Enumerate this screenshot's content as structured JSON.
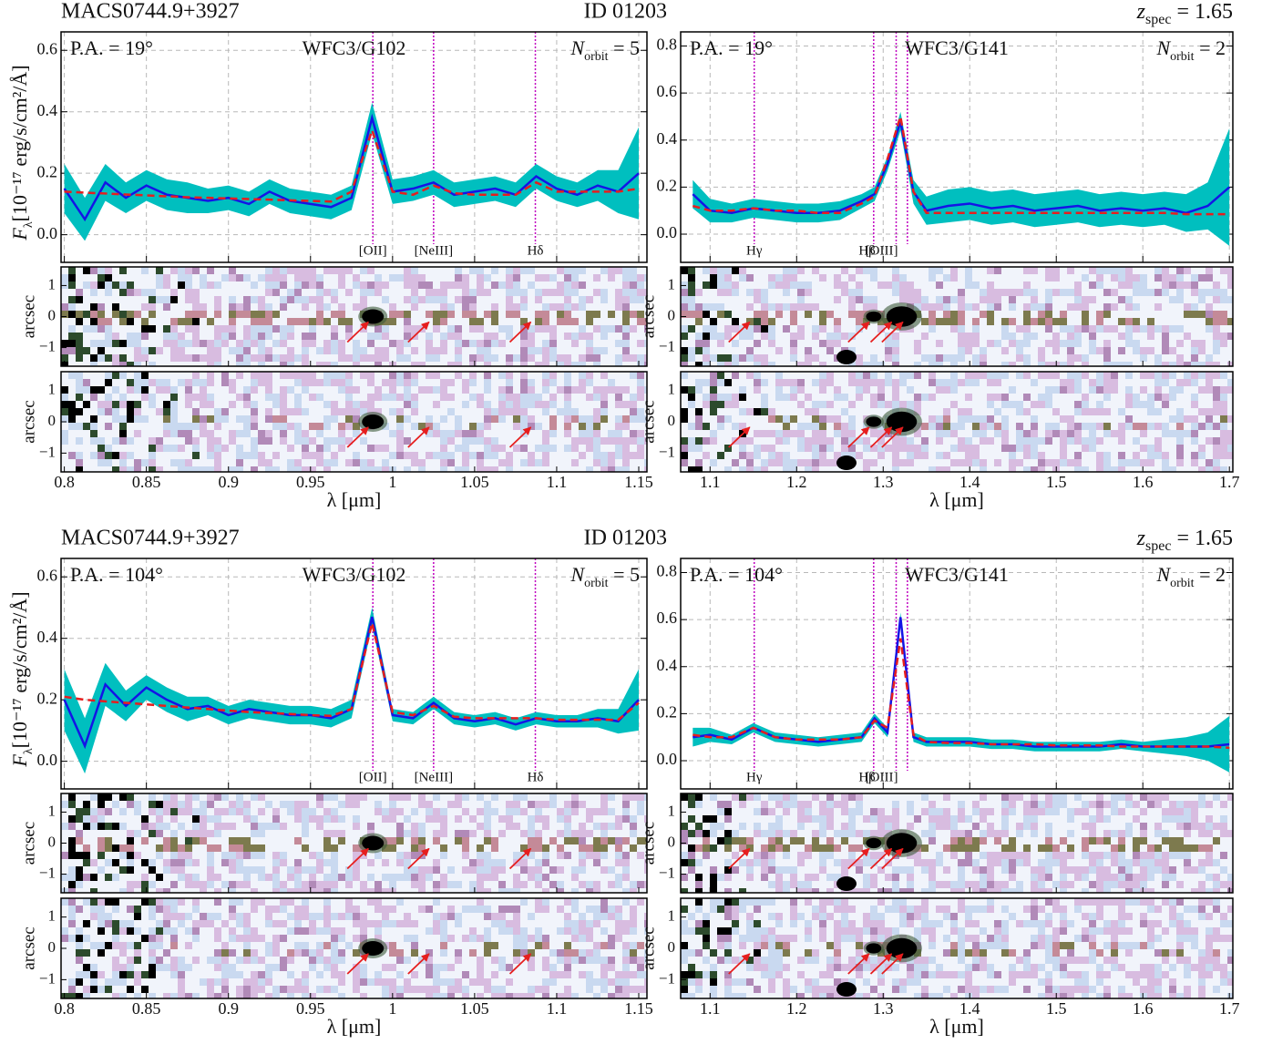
{
  "chart_data": [
    {
      "type": "line",
      "title": "MACS0744.9+3927",
      "id": "ID 01203",
      "position_angle": "P.A. = 19°",
      "grism": "WFC3/G102",
      "orbits": {
        "symbol": "N",
        "sub": "orbit",
        "rest": " = 5"
      },
      "ylabel": {
        "symbol": "F",
        "sub": "λ",
        "rest": "[10⁻¹⁷ erg/s/cm²/Å]"
      },
      "xlabel": "λ [μm]",
      "image_ylabel": "arcsec",
      "x": [
        0.8,
        0.8125,
        0.825,
        0.8375,
        0.85,
        0.8625,
        0.875,
        0.8875,
        0.9,
        0.9125,
        0.925,
        0.9375,
        0.95,
        0.9625,
        0.975,
        0.9875,
        1.0,
        1.0125,
        1.025,
        1.0375,
        1.05,
        1.0625,
        1.075,
        1.0875,
        1.1,
        1.1125,
        1.125,
        1.1375,
        1.15
      ],
      "series": [
        {
          "color": "#1414e6",
          "band_color": "#00bfbf",
          "values": [
            0.15,
            0.05,
            0.17,
            0.12,
            0.16,
            0.13,
            0.12,
            0.11,
            0.12,
            0.1,
            0.14,
            0.11,
            0.1,
            0.09,
            0.12,
            0.38,
            0.14,
            0.15,
            0.17,
            0.13,
            0.14,
            0.15,
            0.13,
            0.19,
            0.15,
            0.13,
            0.16,
            0.14,
            0.2
          ],
          "error": [
            0.08,
            0.07,
            0.06,
            0.05,
            0.05,
            0.05,
            0.05,
            0.04,
            0.04,
            0.04,
            0.04,
            0.04,
            0.04,
            0.04,
            0.04,
            0.05,
            0.04,
            0.04,
            0.04,
            0.04,
            0.04,
            0.04,
            0.04,
            0.04,
            0.04,
            0.04,
            0.05,
            0.07,
            0.15
          ]
        },
        {
          "color": "#e61e1e",
          "dashed": true,
          "values": [
            0.14,
            0.137,
            0.134,
            0.131,
            0.128,
            0.125,
            0.122,
            0.12,
            0.118,
            0.116,
            0.114,
            0.112,
            0.11,
            0.108,
            0.14,
            0.34,
            0.14,
            0.13,
            0.16,
            0.135,
            0.13,
            0.13,
            0.13,
            0.17,
            0.14,
            0.14,
            0.14,
            0.14,
            0.15
          ]
        }
      ],
      "lines": [
        {
          "wavelength": 0.988,
          "label": "[OII]"
        },
        {
          "wavelength": 1.025,
          "label": "[NeIII]"
        },
        {
          "wavelength": 1.087,
          "label": "Hδ"
        }
      ],
      "line_color": "#c000c0",
      "xlim": [
        0.798,
        1.155
      ],
      "xticks": [
        0.8,
        0.85,
        0.9,
        0.95,
        1,
        1.05,
        1.1,
        1.15
      ],
      "ylim": [
        -0.09,
        0.66
      ],
      "yticks": [
        {
          "value": 0,
          "label": "0.0"
        },
        {
          "value": 0.2,
          "label": "0.2"
        },
        {
          "value": 0.4,
          "label": "0.4"
        },
        {
          "value": 0.6,
          "label": "0.6"
        }
      ],
      "image_ylim": [
        -1.6,
        1.6
      ],
      "image_yticks": [
        {
          "value": -1,
          "label": "−1"
        },
        0,
        1
      ],
      "grid": true
    },
    {
      "type": "line",
      "redshift": {
        "symbol": "z",
        "sub": "spec",
        "rest": " = 1.65"
      },
      "position_angle": "P.A. = 19°",
      "grism": "WFC3/G141",
      "orbits": {
        "symbol": "N",
        "sub": "orbit",
        "rest": " = 2"
      },
      "xlabel": "λ [μm]",
      "image_ylabel": "arcsec",
      "x": [
        1.08,
        1.1,
        1.125,
        1.15,
        1.175,
        1.2,
        1.225,
        1.25,
        1.275,
        1.29,
        1.305,
        1.32,
        1.335,
        1.35,
        1.375,
        1.4,
        1.425,
        1.45,
        1.475,
        1.5,
        1.525,
        1.55,
        1.575,
        1.6,
        1.625,
        1.65,
        1.675,
        1.7
      ],
      "series": [
        {
          "color": "#1414e6",
          "band_color": "#00bfbf",
          "values": [
            0.17,
            0.1,
            0.09,
            0.11,
            0.1,
            0.09,
            0.09,
            0.1,
            0.14,
            0.17,
            0.3,
            0.48,
            0.18,
            0.1,
            0.12,
            0.13,
            0.11,
            0.12,
            0.1,
            0.11,
            0.12,
            0.1,
            0.11,
            0.1,
            0.11,
            0.09,
            0.12,
            0.2
          ],
          "error": [
            0.06,
            0.05,
            0.04,
            0.04,
            0.04,
            0.04,
            0.04,
            0.04,
            0.03,
            0.03,
            0.03,
            0.04,
            0.05,
            0.06,
            0.07,
            0.07,
            0.07,
            0.07,
            0.07,
            0.07,
            0.07,
            0.07,
            0.07,
            0.07,
            0.07,
            0.08,
            0.1,
            0.25
          ]
        },
        {
          "color": "#e61e1e",
          "dashed": true,
          "values": [
            0.12,
            0.1,
            0.1,
            0.11,
            0.1,
            0.1,
            0.09,
            0.09,
            0.13,
            0.16,
            0.32,
            0.5,
            0.18,
            0.09,
            0.09,
            0.09,
            0.09,
            0.09,
            0.09,
            0.09,
            0.09,
            0.09,
            0.09,
            0.09,
            0.09,
            0.085,
            0.085,
            0.085
          ]
        }
      ],
      "lines": [
        {
          "wavelength": 1.151,
          "label": "Hγ"
        },
        {
          "wavelength": 1.289,
          "label": "Hβ"
        },
        {
          "wavelength": 1.315,
          "label": "[OIII]"
        },
        {
          "wavelength": 1.328
        }
      ],
      "line_color": "#c000c0",
      "xlim": [
        1.066,
        1.704
      ],
      "xticks": [
        1.1,
        1.2,
        1.3,
        1.4,
        1.5,
        1.6,
        1.7
      ],
      "ylim": [
        -0.12,
        0.86
      ],
      "yticks": [
        {
          "value": 0,
          "label": "0.0"
        },
        {
          "value": 0.2,
          "label": "0.2"
        },
        {
          "value": 0.4,
          "label": "0.4"
        },
        {
          "value": 0.6,
          "label": "0.6"
        },
        {
          "value": 0.8,
          "label": "0.8"
        }
      ],
      "image_ylim": [
        -1.6,
        1.6
      ],
      "image_yticks": [
        {
          "value": -1,
          "label": "−1"
        },
        0,
        1
      ],
      "grid": true
    },
    {
      "type": "line",
      "title": "MACS0744.9+3927",
      "id": "ID 01203",
      "position_angle": "P.A. = 104°",
      "grism": "WFC3/G102",
      "orbits": {
        "symbol": "N",
        "sub": "orbit",
        "rest": " = 5"
      },
      "ylabel": {
        "symbol": "F",
        "sub": "λ",
        "rest": "[10⁻¹⁷ erg/s/cm²/Å]"
      },
      "xlabel": "λ [μm]",
      "image_ylabel": "arcsec",
      "x": [
        0.8,
        0.8125,
        0.825,
        0.8375,
        0.85,
        0.8625,
        0.875,
        0.8875,
        0.9,
        0.9125,
        0.925,
        0.9375,
        0.95,
        0.9625,
        0.975,
        0.9875,
        1.0,
        1.0125,
        1.025,
        1.0375,
        1.05,
        1.0625,
        1.075,
        1.0875,
        1.1,
        1.1125,
        1.125,
        1.1375,
        1.15
      ],
      "series": [
        {
          "color": "#1414e6",
          "band_color": "#00bfbf",
          "values": [
            0.2,
            0.05,
            0.25,
            0.18,
            0.24,
            0.2,
            0.17,
            0.18,
            0.15,
            0.17,
            0.16,
            0.15,
            0.15,
            0.14,
            0.17,
            0.47,
            0.15,
            0.14,
            0.19,
            0.14,
            0.13,
            0.14,
            0.12,
            0.14,
            0.13,
            0.13,
            0.14,
            0.13,
            0.2
          ],
          "error": [
            0.1,
            0.09,
            0.07,
            0.05,
            0.04,
            0.04,
            0.04,
            0.03,
            0.03,
            0.03,
            0.03,
            0.03,
            0.03,
            0.03,
            0.03,
            0.03,
            0.02,
            0.02,
            0.02,
            0.02,
            0.02,
            0.02,
            0.02,
            0.02,
            0.02,
            0.02,
            0.03,
            0.04,
            0.1
          ]
        },
        {
          "color": "#e61e1e",
          "dashed": true,
          "values": [
            0.21,
            0.2,
            0.195,
            0.19,
            0.185,
            0.18,
            0.175,
            0.17,
            0.165,
            0.16,
            0.157,
            0.154,
            0.15,
            0.148,
            0.17,
            0.45,
            0.16,
            0.15,
            0.18,
            0.145,
            0.14,
            0.14,
            0.14,
            0.14,
            0.135,
            0.135,
            0.135,
            0.135,
            0.19
          ]
        }
      ],
      "lines": [
        {
          "wavelength": 0.988,
          "label": "[OII]"
        },
        {
          "wavelength": 1.025,
          "label": "[NeIII]"
        },
        {
          "wavelength": 1.087,
          "label": "Hδ"
        }
      ],
      "line_color": "#c000c0",
      "xlim": [
        0.798,
        1.155
      ],
      "xticks": [
        0.8,
        0.85,
        0.9,
        0.95,
        1,
        1.05,
        1.1,
        1.15
      ],
      "ylim": [
        -0.09,
        0.66
      ],
      "yticks": [
        {
          "value": 0,
          "label": "0.0"
        },
        {
          "value": 0.2,
          "label": "0.2"
        },
        {
          "value": 0.4,
          "label": "0.4"
        },
        {
          "value": 0.6,
          "label": "0.6"
        }
      ],
      "image_ylim": [
        -1.6,
        1.6
      ],
      "image_yticks": [
        {
          "value": -1,
          "label": "−1"
        },
        0,
        1
      ],
      "grid": true
    },
    {
      "type": "line",
      "redshift": {
        "symbol": "z",
        "sub": "spec",
        "rest": " = 1.65"
      },
      "position_angle": "P.A. = 104°",
      "grism": "WFC3/G141",
      "orbits": {
        "symbol": "N",
        "sub": "orbit",
        "rest": " = 2"
      },
      "xlabel": "λ [μm]",
      "image_ylabel": "arcsec",
      "x": [
        1.08,
        1.1,
        1.125,
        1.15,
        1.175,
        1.2,
        1.225,
        1.25,
        1.275,
        1.29,
        1.305,
        1.32,
        1.335,
        1.35,
        1.375,
        1.4,
        1.425,
        1.45,
        1.475,
        1.5,
        1.525,
        1.55,
        1.575,
        1.6,
        1.625,
        1.65,
        1.675,
        1.7
      ],
      "series": [
        {
          "color": "#1414e6",
          "band_color": "#00bfbf",
          "values": [
            0.1,
            0.11,
            0.09,
            0.14,
            0.1,
            0.09,
            0.08,
            0.09,
            0.1,
            0.18,
            0.12,
            0.61,
            0.1,
            0.08,
            0.08,
            0.08,
            0.07,
            0.07,
            0.06,
            0.06,
            0.06,
            0.06,
            0.07,
            0.06,
            0.06,
            0.06,
            0.06,
            0.07
          ],
          "error": [
            0.04,
            0.03,
            0.02,
            0.02,
            0.02,
            0.02,
            0.02,
            0.02,
            0.02,
            0.02,
            0.02,
            0.02,
            0.02,
            0.02,
            0.02,
            0.02,
            0.02,
            0.02,
            0.02,
            0.02,
            0.02,
            0.02,
            0.02,
            0.02,
            0.03,
            0.04,
            0.06,
            0.12
          ]
        },
        {
          "color": "#e61e1e",
          "dashed": true,
          "values": [
            0.11,
            0.1,
            0.1,
            0.14,
            0.1,
            0.09,
            0.09,
            0.09,
            0.1,
            0.17,
            0.14,
            0.52,
            0.11,
            0.08,
            0.075,
            0.075,
            0.07,
            0.07,
            0.07,
            0.065,
            0.065,
            0.065,
            0.06,
            0.06,
            0.06,
            0.06,
            0.06,
            0.055
          ]
        }
      ],
      "lines": [
        {
          "wavelength": 1.151,
          "label": "Hγ"
        },
        {
          "wavelength": 1.289,
          "label": "Hβ"
        },
        {
          "wavelength": 1.315,
          "label": "[OIII]"
        },
        {
          "wavelength": 1.328
        }
      ],
      "line_color": "#c000c0",
      "xlim": [
        1.066,
        1.704
      ],
      "xticks": [
        1.1,
        1.2,
        1.3,
        1.4,
        1.5,
        1.6,
        1.7
      ],
      "ylim": [
        -0.12,
        0.86
      ],
      "yticks": [
        {
          "value": 0,
          "label": "0.0"
        },
        {
          "value": 0.2,
          "label": "0.2"
        },
        {
          "value": 0.4,
          "label": "0.4"
        },
        {
          "value": 0.6,
          "label": "0.6"
        },
        {
          "value": 0.8,
          "label": "0.8"
        }
      ],
      "image_ylim": [
        -1.6,
        1.6
      ],
      "image_yticks": [
        {
          "value": -1,
          "label": "−1"
        },
        0,
        1
      ],
      "grid": true
    }
  ]
}
